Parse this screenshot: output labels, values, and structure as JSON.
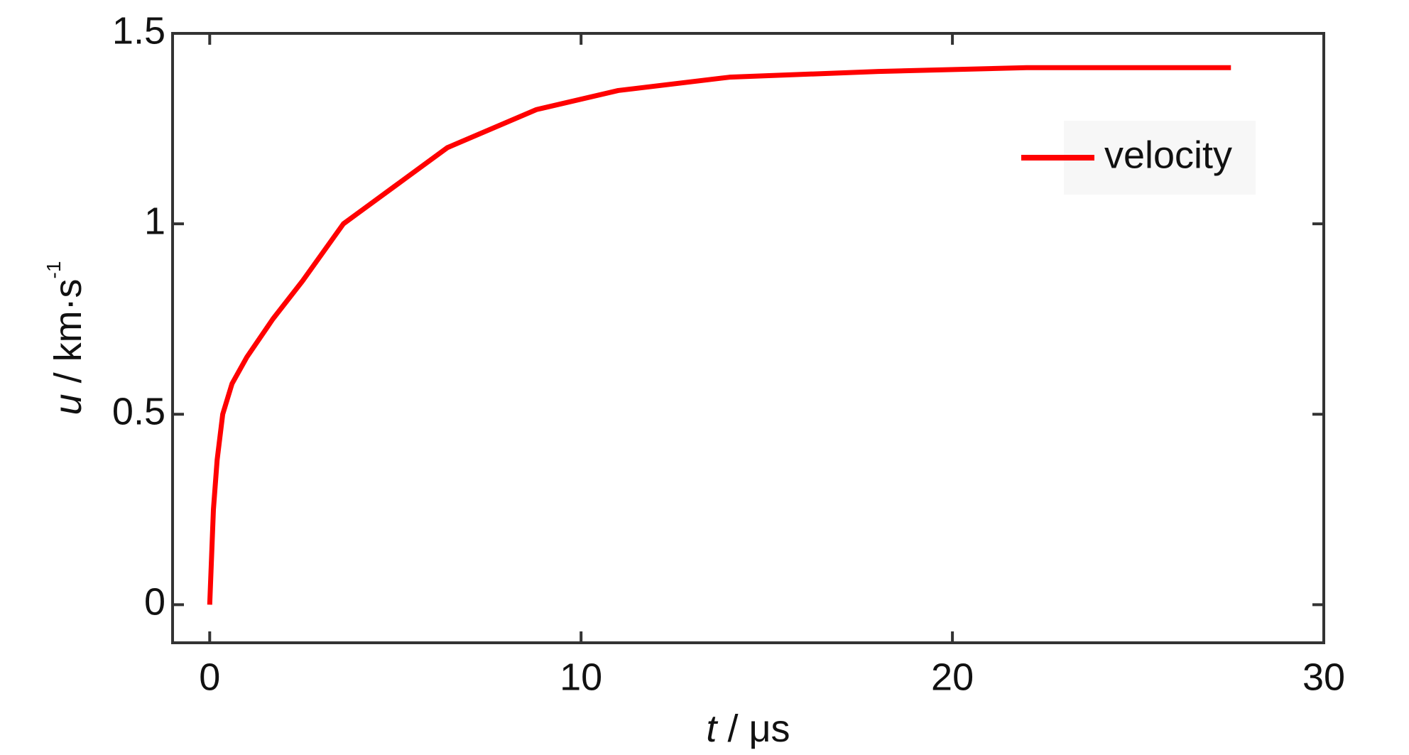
{
  "chart_data": {
    "type": "line",
    "xlabel": {
      "var": "t",
      "unit": " / μs"
    },
    "ylabel": {
      "var": "u",
      "unit": " / km·s",
      "exp": "-1"
    },
    "x": [
      0,
      0.1,
      0.2,
      0.35,
      0.6,
      1,
      1.7,
      2.5,
      3.6,
      5,
      6.4,
      8.8,
      11,
      14,
      18,
      22,
      27.5
    ],
    "series": [
      {
        "name": "velocity",
        "color": "#ff0000",
        "values": [
          0,
          0.25,
          0.38,
          0.5,
          0.58,
          0.65,
          0.75,
          0.85,
          1.0,
          1.1,
          1.2,
          1.3,
          1.35,
          1.385,
          1.4,
          1.41,
          1.41
        ]
      }
    ],
    "xlim": [
      -1,
      30
    ],
    "xticks": [
      0,
      10,
      20,
      30
    ],
    "ylim": [
      -0.1,
      1.5
    ],
    "yticks": [
      0,
      0.5,
      1,
      1.5
    ],
    "legend": "upper-right"
  }
}
